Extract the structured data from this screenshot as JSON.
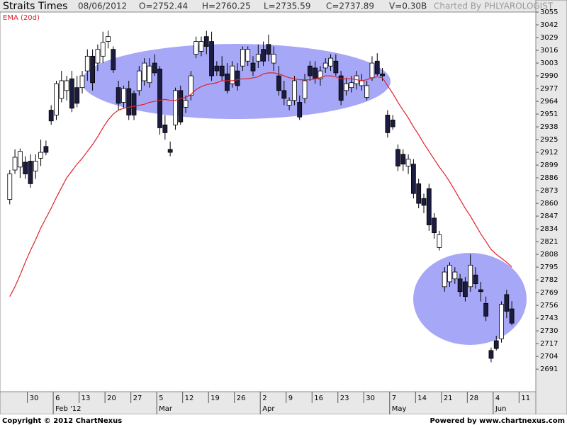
{
  "chart_data": {
    "type": "candlestick",
    "title": "Straits Times",
    "header": [
      "08/06/2012",
      "O=2752.44",
      "H=2760.25",
      "L=2735.59",
      "C=2737.89",
      "V=0.30B"
    ],
    "credit": "Charted By PHLYAROLOGIST",
    "footer_left": "Copyright © 2012 ChartNexus",
    "footer_right": "Powered by www.chartnexus.com",
    "up_color": "#ffffff",
    "down_color": "#1c1c40",
    "xlim": [
      -1.2,
      101.5
    ],
    "ylim": [
      2668,
      3067.3
    ],
    "yticks": [
      2691,
      2704,
      2717,
      2730,
      2743,
      2756,
      2769,
      2782,
      2795,
      2808,
      2821,
      2834,
      2847,
      2860,
      2873,
      2886,
      2899,
      2912,
      2925,
      2938,
      2951,
      2964,
      2977,
      2990,
      3003,
      3016,
      3029,
      3042,
      3055
    ],
    "xticks": [
      {
        "value": 3.4,
        "label": "30"
      },
      {
        "value": 8.4,
        "label": "6"
      },
      {
        "value": 13.4,
        "label": "13"
      },
      {
        "value": 18.4,
        "label": "20"
      },
      {
        "value": 23.4,
        "label": "27"
      },
      {
        "value": 28.4,
        "label": "5"
      },
      {
        "value": 33.4,
        "label": "12"
      },
      {
        "value": 38.4,
        "label": "19"
      },
      {
        "value": 43.4,
        "label": "26"
      },
      {
        "value": 48.4,
        "label": "2"
      },
      {
        "value": 53.4,
        "label": "9"
      },
      {
        "value": 58.4,
        "label": "16"
      },
      {
        "value": 63.4,
        "label": "23"
      },
      {
        "value": 68.4,
        "label": "30"
      },
      {
        "value": 73.4,
        "label": "7"
      },
      {
        "value": 78.4,
        "label": "14"
      },
      {
        "value": 83.4,
        "label": "21"
      },
      {
        "value": 88.4,
        "label": "28"
      },
      {
        "value": 93.4,
        "label": "4"
      },
      {
        "value": 98.4,
        "label": "11"
      }
    ],
    "month_labels": [
      {
        "value": 8.4,
        "label": "Feb '12"
      },
      {
        "value": 28.4,
        "label": "Mar"
      },
      {
        "value": 48.4,
        "label": "Apr"
      },
      {
        "value": 73.4,
        "label": "May"
      },
      {
        "value": 93.4,
        "label": "Jun"
      }
    ],
    "open": [
      2864,
      2894,
      2897,
      2902,
      2903,
      2893,
      2906,
      2918,
      2955,
      2950,
      2967,
      2975,
      2987,
      2978,
      2978,
      2995,
      3010,
      3003,
      3010,
      3025,
      3017,
      2978,
      2963,
      2977,
      2972,
      2975,
      2985,
      2983,
      3003,
      2997,
      2940,
      2915,
      2940,
      2975,
      2958,
      2970,
      3012,
      3015,
      3030,
      3025,
      3000,
      3000,
      2992,
      2982,
      2995,
      3000,
      3005,
      3003,
      3005,
      3017,
      3022,
      3003,
      2990,
      2975,
      2960,
      2965,
      2963,
      2967,
      3000,
      2998,
      2987,
      2998,
      3000,
      3005,
      2990,
      2975,
      2978,
      2982,
      2980,
      2968,
      2988,
      3005,
      2992,
      2950,
      2945,
      2915,
      2910,
      2898,
      2900,
      2880,
      2865,
      2875,
      2845,
      2815,
      2775,
      2780,
      2783,
      2783,
      2780,
      2775,
      2787,
      2772,
      2758,
      2710,
      2720,
      2722,
      2767,
      2752.44
    ],
    "high": [
      2894,
      2915,
      2916,
      2908,
      2910,
      2910,
      2925,
      2924,
      2960,
      2985,
      2995,
      2990,
      2995,
      2990,
      2995,
      3017,
      3017,
      3022,
      3035,
      3036,
      3020,
      2985,
      2980,
      2985,
      2975,
      3000,
      3008,
      3008,
      3012,
      3000,
      2950,
      2923,
      2978,
      2980,
      2970,
      2995,
      3030,
      3030,
      3036,
      3035,
      3005,
      3010,
      3003,
      3005,
      3003,
      3020,
      3020,
      3010,
      3022,
      3025,
      3032,
      3020,
      3000,
      2985,
      2968,
      2990,
      2970,
      2992,
      3005,
      3005,
      3000,
      3008,
      3012,
      3012,
      2995,
      2988,
      2990,
      2995,
      2992,
      2985,
      3010,
      3013,
      2998,
      2955,
      2950,
      2920,
      2915,
      2910,
      2905,
      2885,
      2870,
      2880,
      2850,
      2832,
      2795,
      2800,
      2795,
      2788,
      2785,
      2808,
      2795,
      2780,
      2765,
      2713,
      2725,
      2760,
      2772,
      2760.25
    ],
    "low": [
      2859,
      2890,
      2886,
      2885,
      2876,
      2885,
      2898,
      2909,
      2940,
      2945,
      2963,
      2965,
      2953,
      2958,
      2972,
      2985,
      2975,
      2995,
      3003,
      3018,
      2993,
      2955,
      2957,
      2945,
      2945,
      2970,
      2980,
      2978,
      2990,
      2930,
      2925,
      2908,
      2935,
      2940,
      2952,
      2965,
      3008,
      3010,
      3012,
      2985,
      2990,
      2985,
      2972,
      2978,
      2975,
      2995,
      3000,
      2990,
      2998,
      3000,
      3005,
      2995,
      2970,
      2960,
      2955,
      2960,
      2945,
      2962,
      2985,
      2982,
      2980,
      2993,
      2995,
      2990,
      2960,
      2970,
      2973,
      2976,
      2975,
      2965,
      2985,
      2990,
      2985,
      2927,
      2935,
      2893,
      2893,
      2890,
      2865,
      2855,
      2850,
      2832,
      2824,
      2812,
      2770,
      2775,
      2778,
      2765,
      2760,
      2770,
      2773,
      2760,
      2740,
      2698,
      2710,
      2718,
      2743,
      2735.59
    ],
    "close": [
      2890,
      2907,
      2913,
      2890,
      2880,
      2903,
      2912,
      2912,
      2944,
      2982,
      2985,
      2985,
      2957,
      2962,
      2990,
      3010,
      2983,
      3017,
      3024,
      3030,
      2996,
      2962,
      2977,
      2950,
      2950,
      2995,
      3003,
      3000,
      2993,
      2937,
      2932,
      2912,
      2975,
      2943,
      2965,
      2990,
      3025,
      3025,
      3020,
      2990,
      2995,
      2990,
      2975,
      3000,
      2980,
      3017,
      3017,
      2995,
      3012,
      3005,
      3012,
      3012,
      2975,
      2967,
      2965,
      2985,
      2948,
      2985,
      2990,
      2987,
      2995,
      3003,
      3008,
      2993,
      2965,
      2982,
      2983,
      2990,
      2985,
      2980,
      3003,
      2992,
      2990,
      2932,
      2938,
      2898,
      2900,
      2905,
      2870,
      2860,
      2858,
      2838,
      2830,
      2828,
      2790,
      2797,
      2790,
      2770,
      2765,
      2797,
      2778,
      2770,
      2745,
      2702,
      2712,
      2757,
      2750,
      2737.89
    ],
    "series": [
      {
        "name": "EMA (20d)",
        "color": "#e0202a",
        "values": [
          2765,
          2775,
          2787,
          2800,
          2812,
          2823,
          2835,
          2845,
          2855,
          2866,
          2876,
          2886,
          2893,
          2900,
          2906,
          2913,
          2920,
          2928,
          2937,
          2945,
          2951,
          2955,
          2957,
          2958,
          2959,
          2960,
          2961,
          2963,
          2964,
          2965,
          2966,
          2965,
          2965,
          2967,
          2968,
          2971,
          2976,
          2979,
          2981,
          2982,
          2983,
          2985,
          2985,
          2985,
          2986,
          2987,
          2987,
          2988,
          2989,
          2992,
          2993,
          2993,
          2992,
          2990,
          2988,
          2987,
          2986,
          2986,
          2986,
          2987,
          2988,
          2990,
          2990,
          2989,
          2987,
          2987,
          2987,
          2986,
          2985,
          2986,
          2988,
          2989,
          2988,
          2980,
          2972,
          2963,
          2955,
          2947,
          2938,
          2930,
          2921,
          2913,
          2905,
          2897,
          2890,
          2882,
          2873,
          2864,
          2855,
          2847,
          2838,
          2829,
          2821,
          2813,
          2808,
          2804,
          2800,
          2795
        ]
      }
    ]
  }
}
